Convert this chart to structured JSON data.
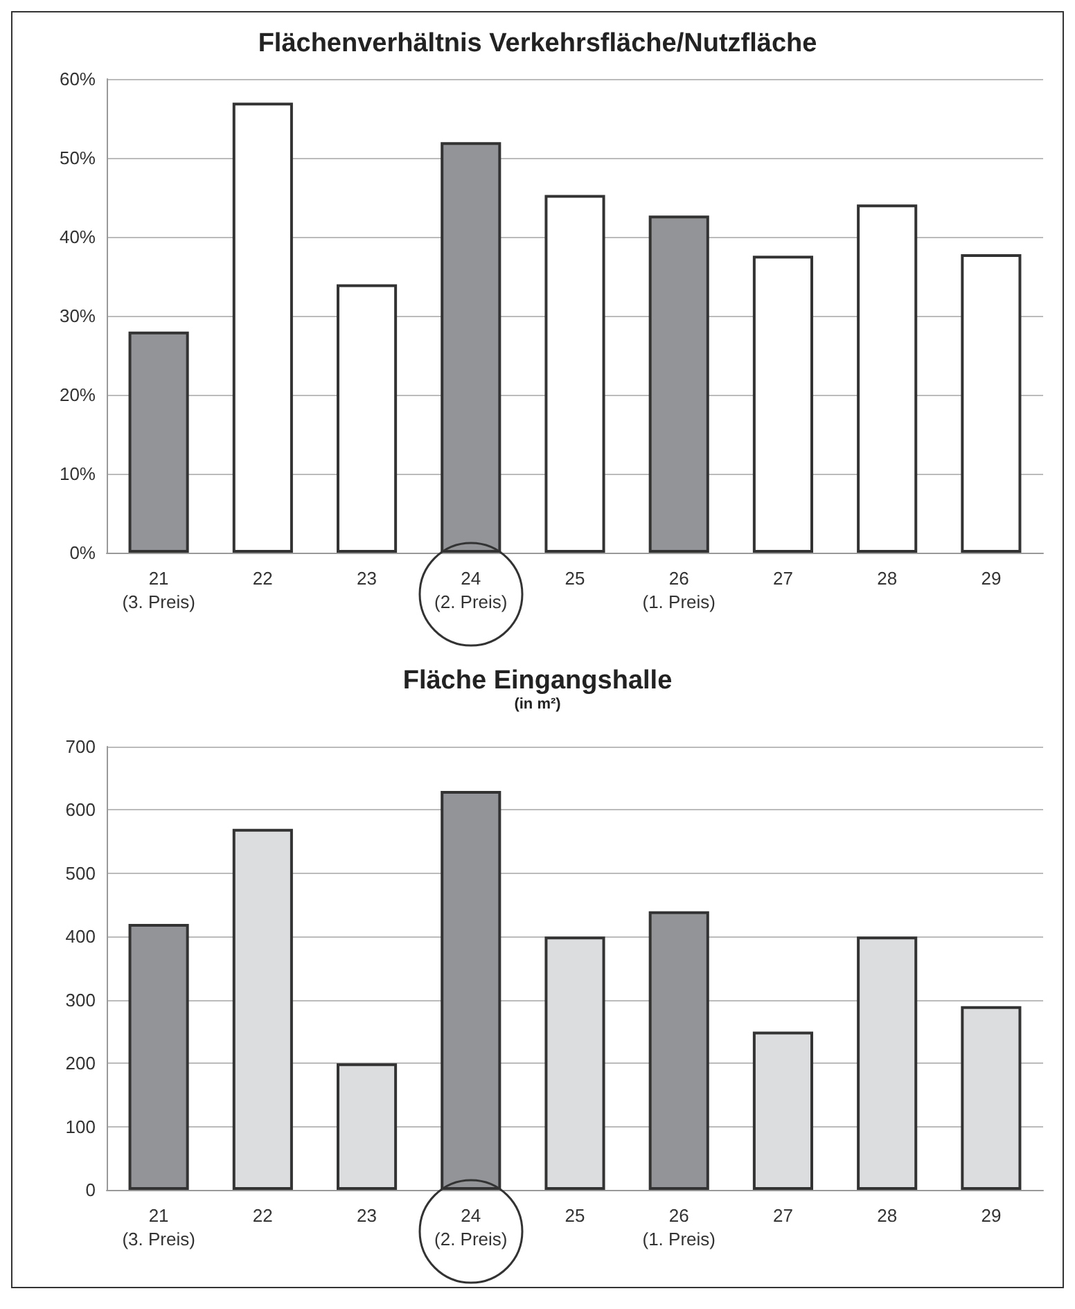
{
  "chart_data": [
    {
      "type": "bar",
      "title": "Flächenverhältnis Verkehrsfläche/Nutzfläche",
      "categories": [
        "21\n(3. Preis)",
        "22",
        "23",
        "24\n(2. Preis)",
        "25",
        "26\n(1. Preis)",
        "27",
        "28",
        "29"
      ],
      "values": [
        28,
        57,
        34,
        52,
        45.3,
        42.7,
        37.6,
        44.1,
        37.8
      ],
      "colors": [
        "#939497",
        "#ffffff",
        "#ffffff",
        "#939497",
        "#ffffff",
        "#939497",
        "#ffffff",
        "#ffffff",
        "#ffffff"
      ],
      "ylim": [
        0,
        60
      ],
      "yticks": [
        {
          "value": 0,
          "label": "0%"
        },
        {
          "value": 10,
          "label": "10%"
        },
        {
          "value": 20,
          "label": "20%"
        },
        {
          "value": 30,
          "label": "30%"
        },
        {
          "value": 40,
          "label": "40%"
        },
        {
          "value": 50,
          "label": "50%"
        },
        {
          "value": 60,
          "label": "60%"
        }
      ],
      "grid": "y"
    },
    {
      "type": "bar",
      "title": "Fläche Eingangshalle",
      "subtitle": "(in m²)",
      "categories": [
        "21\n(3. Preis)",
        "22",
        "23",
        "24\n(2. Preis)",
        "25",
        "26\n(1. Preis)",
        "27",
        "28",
        "29"
      ],
      "values": [
        420,
        570,
        200,
        630,
        400,
        440,
        250,
        400,
        290
      ],
      "colors": [
        "#939497",
        "#dcdddf",
        "#dcdddf",
        "#939497",
        "#dcdddf",
        "#939497",
        "#dcdddf",
        "#dcdddf",
        "#dcdddf"
      ],
      "ylim": [
        0,
        700
      ],
      "yticks": [
        0,
        100,
        200,
        300,
        400,
        500,
        600,
        700
      ],
      "grid": "y"
    }
  ]
}
